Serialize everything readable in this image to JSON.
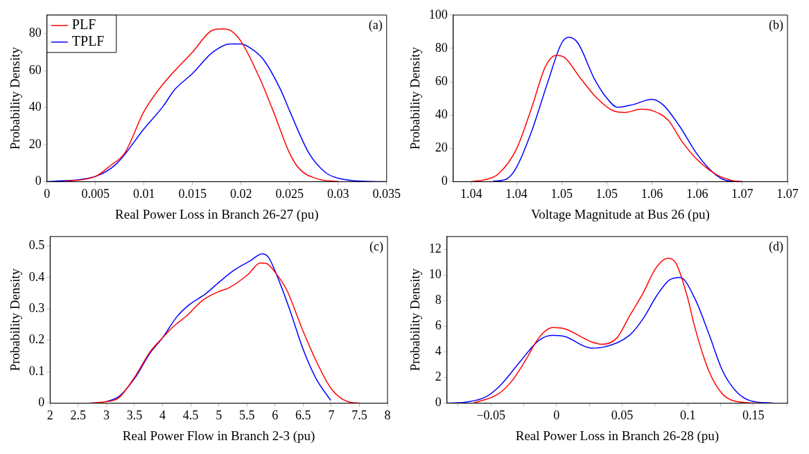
{
  "chart_data": [
    {
      "type": "line",
      "xlabel": "Real Power Loss in Branch 26-27 (pu)",
      "ylabel": "Probability Density",
      "annotations": [
        "(a)"
      ],
      "legend": "top left",
      "grid": false,
      "xlim": [
        0,
        0.035
      ],
      "xticks": [
        0,
        0.005,
        0.01,
        0.015,
        0.02,
        0.025,
        0.03,
        0.035
      ],
      "ylim": [
        0,
        90
      ],
      "yticks": [
        0,
        20,
        40,
        60,
        80
      ],
      "series": [
        {
          "name": "PLF",
          "color": "#ff0000",
          "x": [
            0.0018,
            0.005,
            0.00665,
            0.008,
            0.01,
            0.012,
            0.015,
            0.017,
            0.018,
            0.019,
            0.02,
            0.022,
            0.0233,
            0.025,
            0.026,
            0.0279,
            0.03
          ],
          "values": [
            0.1,
            2.9,
            9.2,
            15.4,
            38,
            53,
            70,
            81.7,
            82.5,
            81.4,
            75.8,
            55,
            38.3,
            15.4,
            7,
            1.5,
            0.1
          ]
        },
        {
          "name": "TPLF",
          "color": "#0000ff",
          "x": [
            0,
            0.005,
            0.0072,
            0.01,
            0.012,
            0.0131,
            0.015,
            0.017,
            0.0189,
            0.02,
            0.0209,
            0.0223,
            0.0241,
            0.025,
            0.027,
            0.0287,
            0.03,
            0.032,
            0.035
          ],
          "values": [
            0,
            2.9,
            9.9,
            28.6,
            41,
            49.4,
            58.5,
            69.6,
            74.4,
            74.4,
            72.4,
            66,
            49.4,
            38.3,
            15.4,
            5,
            1.9,
            0.4,
            0
          ]
        }
      ]
    },
    {
      "type": "line",
      "xlabel": "Voltage Magnitude at Bus 26 (pu)",
      "ylabel": "Probability Density",
      "annotations": [
        "(b)"
      ],
      "legend": false,
      "grid": false,
      "xlim": [
        1.033,
        1.07
      ],
      "xticks": [
        {
          "value": 1.035,
          "label": "1.04"
        },
        1.04,
        {
          "value": 1.045,
          "label": "1.05"
        },
        1.05,
        {
          "value": 1.055,
          "label": "1.06"
        },
        1.06,
        {
          "value": 1.065,
          "label": "1.07"
        },
        1.07
      ],
      "ylim": [
        0,
        100
      ],
      "yticks": [
        0,
        20,
        40,
        60,
        80,
        100
      ],
      "series": [
        {
          "color": "#ff0000",
          "x": [
            1.035,
            1.0368,
            1.038,
            1.04,
            1.0417,
            1.0432,
            1.0444,
            1.0453,
            1.0471,
            1.0489,
            1.0508,
            1.052,
            1.0538,
            1.055,
            1.0568,
            1.0583,
            1.06,
            1.062,
            1.0638,
            1.065
          ],
          "values": [
            0,
            1.6,
            4.7,
            19.6,
            44.7,
            69,
            75.8,
            74.6,
            62,
            50.2,
            42.4,
            41.6,
            43.5,
            42.7,
            36.9,
            24.3,
            13.3,
            4.7,
            0.8,
            0
          ]
        },
        {
          "color": "#0000ff",
          "x": [
            1.0374,
            1.0389,
            1.04,
            1.0417,
            1.0435,
            1.045,
            1.0458,
            1.0468,
            1.0486,
            1.05,
            1.0512,
            1.0529,
            1.055,
            1.0562,
            1.058,
            1.06,
            1.0617,
            1.0632,
            1.065
          ],
          "values": [
            0.3,
            1.6,
            8.6,
            30.6,
            60.4,
            83.2,
            86.7,
            83.2,
            62,
            50.2,
            44.7,
            46.3,
            49.5,
            46.3,
            33.8,
            16.5,
            5.8,
            0.8,
            0
          ]
        }
      ]
    },
    {
      "type": "line",
      "xlabel": "Real Power Flow in Branch 2-3 (pu)",
      "ylabel": "Probability Density",
      "annotations": [
        "(c)"
      ],
      "legend": false,
      "grid": false,
      "xlim": [
        2,
        8
      ],
      "xticks": [
        2,
        2.5,
        3,
        3.5,
        4,
        4.5,
        5,
        5.5,
        6,
        6.5,
        7,
        7.5,
        8
      ],
      "ylim": [
        0,
        0.53
      ],
      "yticks": [
        0,
        0.1,
        0.2,
        0.3,
        0.4,
        0.5
      ],
      "series": [
        {
          "color": "#ff0000",
          "x": [
            2.7,
            3,
            3.22,
            3.5,
            3.78,
            4,
            4.2,
            4.43,
            4.71,
            5,
            5.18,
            5.51,
            5.74,
            5.84,
            6.02,
            6.21,
            6.49,
            6.73,
            7,
            7.29,
            7.52
          ],
          "values": [
            0,
            0.005,
            0.017,
            0.082,
            0.164,
            0.208,
            0.245,
            0.278,
            0.327,
            0.355,
            0.367,
            0.408,
            0.446,
            0.445,
            0.412,
            0.359,
            0.233,
            0.135,
            0.046,
            0.005,
            0
          ]
        },
        {
          "color": "#0000ff",
          "x": [
            3,
            3.22,
            3.5,
            3.78,
            4,
            4.25,
            4.48,
            4.76,
            5,
            5.28,
            5.56,
            5.77,
            5.88,
            6.02,
            6.26,
            6.49,
            6.73,
            6.99
          ],
          "values": [
            0.005,
            0.021,
            0.078,
            0.16,
            0.208,
            0.274,
            0.314,
            0.347,
            0.384,
            0.424,
            0.453,
            0.475,
            0.465,
            0.412,
            0.298,
            0.176,
            0.078,
            0.009
          ]
        }
      ]
    },
    {
      "type": "line",
      "xlabel": "Real Power Loss in Branch 26-28 (pu)",
      "ylabel": "Probability Density",
      "annotations": [
        "(d)"
      ],
      "legend": false,
      "grid": false,
      "xlim": [
        -0.0835,
        0.176
      ],
      "xticks": [
        {
          "value": -0.075,
          "label": null
        },
        {
          "value": -0.05,
          "label": "−0.05"
        },
        {
          "value": -0.025,
          "label": null
        },
        0,
        {
          "value": 0.025,
          "label": null
        },
        0.05,
        {
          "value": 0.075,
          "label": null
        },
        0.1,
        {
          "value": 0.125,
          "label": null
        },
        0.15,
        {
          "value": 0.175,
          "label": null
        }
      ],
      "ylim": [
        0,
        13
      ],
      "yticks": [
        0,
        2,
        4,
        6,
        8,
        10,
        12
      ],
      "series": [
        {
          "color": "#ff0000",
          "x": [
            -0.0636,
            -0.0448,
            -0.0343,
            -0.0239,
            -0.0135,
            -0.003,
            0.0064,
            0.0263,
            0.0346,
            0.0461,
            0.0556,
            0.066,
            0.0754,
            0.0848,
            0.0911,
            0.0994,
            0.1057,
            0.1161,
            0.1266,
            0.1392,
            0.1558
          ],
          "values": [
            0,
            0.7,
            1.7,
            3.3,
            5.1,
            5.9,
            5.8,
            4.8,
            4.6,
            5.1,
            6.8,
            8.6,
            10.5,
            11.3,
            10.9,
            8.4,
            5.8,
            2.5,
            0.7,
            0.1,
            0
          ]
        },
        {
          "color": "#0000ff",
          "x": [
            -0.083,
            -0.0678,
            -0.0538,
            -0.0428,
            -0.0281,
            -0.0135,
            -0.003,
            0.0064,
            0.0263,
            0.0367,
            0.0556,
            0.066,
            0.0764,
            0.0858,
            0.0942,
            0.1057,
            0.1161,
            0.1266,
            0.1371,
            0.1475,
            0.1653
          ],
          "values": [
            0,
            0.1,
            0.5,
            1.4,
            3.2,
            4.9,
            5.3,
            5.2,
            4.3,
            4.4,
            5.3,
            6.6,
            8.4,
            9.6,
            9.8,
            8.1,
            5.4,
            2.5,
            0.9,
            0.2,
            0
          ]
        }
      ]
    }
  ]
}
